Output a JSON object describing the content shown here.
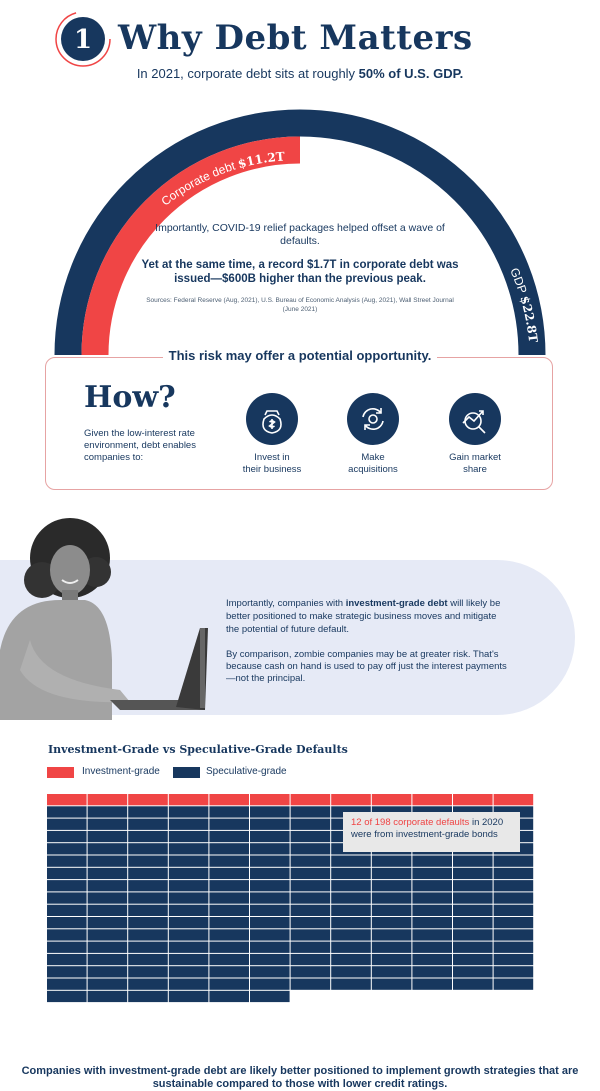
{
  "header": {
    "badge_number": "1",
    "title": "Why Debt Matters",
    "subtitle_pre": "In 2021, corporate debt sits at roughly ",
    "subtitle_bold": "50% of U.S. GDP."
  },
  "arch": {
    "corporate_label": "Corporate debt ",
    "corporate_value": "$11.2T",
    "gdp_label": "GDP ",
    "gdp_value": "$22.8T",
    "note1": "Importantly, COVID-19 relief packages helped offset a wave of defaults.",
    "note2": "Yet at the same time, a record $1.7T in corporate debt was issued—$600B higher than the previous peak.",
    "sources": "Sources: Federal Reserve (Aug, 2021), U.S. Bureau of Economic Analysis (Aug, 2021), Wall Street Journal (June 2021)",
    "colors": {
      "corporate": "#f04545",
      "gdp": "#17375e"
    }
  },
  "how": {
    "risk_label": "This risk may offer a potential opportunity.",
    "title": "How?",
    "description": "Given the low-interest rate environment, debt enables companies to:",
    "items": [
      {
        "icon": "money-bag-icon",
        "label_line1": "Invest in",
        "label_line2": "their business"
      },
      {
        "icon": "exchange-icon",
        "label_line1": "Make",
        "label_line2": "acquisitions"
      },
      {
        "icon": "growth-chart-icon",
        "label_line1": "Gain market",
        "label_line2": "share"
      }
    ]
  },
  "band": {
    "p1_pre": "Importantly, companies with ",
    "p1_bold": "investment-grade debt",
    "p1_post": " will likely be better positioned to make strategic business moves and mitigate the potential of future default.",
    "p2": "By comparison, zombie companies may be at greater risk. That's because cash on hand is used to pay off just the interest payments—not the principal."
  },
  "chart_data": {
    "type": "waffle",
    "title": "Investment-Grade vs Speculative-Grade Defaults",
    "legend": [
      {
        "name": "Investment-grade",
        "color": "#f04545"
      },
      {
        "name": "Speculative-grade",
        "color": "#17375e"
      }
    ],
    "investment_grade": 12,
    "total": 198,
    "callout_red": "12 of 198 corporate defaults",
    "callout_rest": " in 2020 were from investment-grade bonds"
  },
  "footer": {
    "text": "Companies with investment-grade debt are likely better positioned to implement growth strategies that are sustainable compared to those with lower credit ratings."
  }
}
